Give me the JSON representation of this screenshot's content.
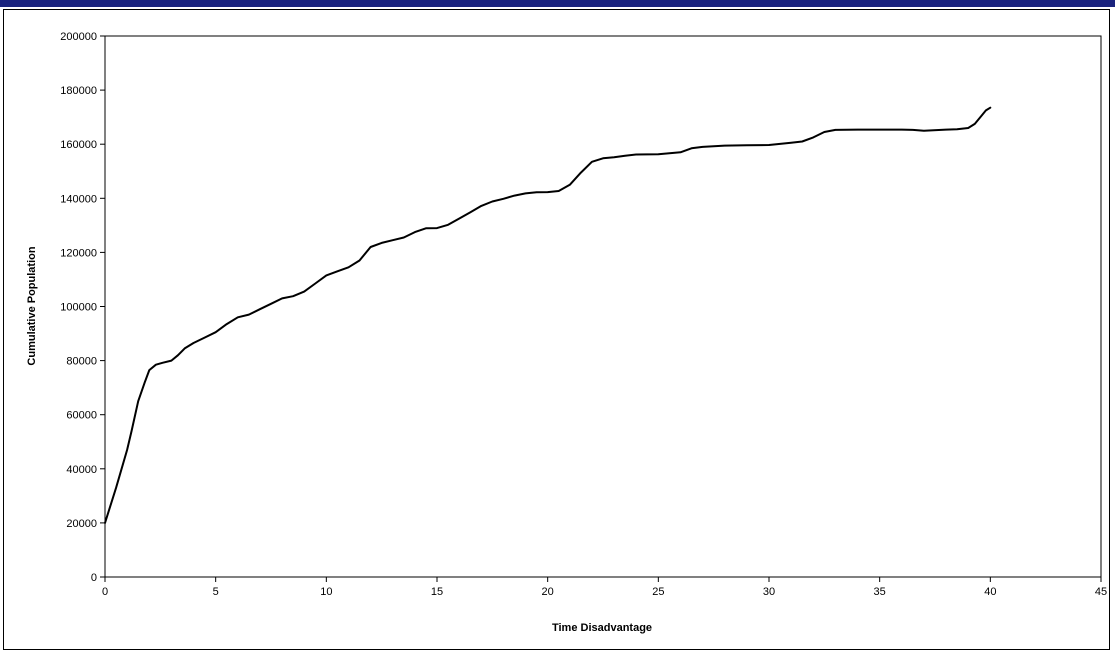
{
  "colors": {
    "top_bar": "#1a237e",
    "series_line": "#000000",
    "plot_border": "#000000"
  },
  "chart_data": {
    "type": "line",
    "xlabel": "Time Disadvantage",
    "ylabel": "Cumulative Population",
    "xlim": [
      0,
      45
    ],
    "ylim": [
      0,
      200000
    ],
    "x_ticks": [
      "0",
      "5",
      "10",
      "15",
      "20",
      "25",
      "30",
      "35",
      "40",
      "45"
    ],
    "y_ticks": [
      "0",
      "20000",
      "40000",
      "60000",
      "80000",
      "100000",
      "120000",
      "140000",
      "160000",
      "180000",
      "200000"
    ],
    "grid": false,
    "legend": "none",
    "series": [
      {
        "x": [
          0,
          0.5,
          1,
          1.2,
          1.5,
          1.8,
          2,
          2.3,
          2.6,
          3,
          3.3,
          3.6,
          4,
          4.5,
          5,
          5.5,
          6,
          6.5,
          7,
          7.5,
          8,
          8.5,
          9,
          9.5,
          10,
          10.5,
          11,
          11.5,
          12,
          12.5,
          13,
          13.5,
          14,
          14.5,
          15,
          15.5,
          16,
          16.5,
          17,
          17.5,
          18,
          18.5,
          19,
          19.5,
          20,
          20.5,
          21,
          21.5,
          22,
          22.5,
          23,
          23.5,
          24,
          25,
          26,
          26.5,
          27,
          28,
          29,
          30,
          31,
          31.5,
          32,
          32.5,
          33,
          34,
          35,
          36,
          36.5,
          37,
          38,
          38.5,
          39,
          39.3,
          39.6,
          39.8,
          40
        ],
        "y": [
          20000,
          33000,
          47000,
          54000,
          65000,
          72000,
          76500,
          78500,
          79200,
          80000,
          82000,
          84500,
          86500,
          88500,
          90500,
          93500,
          96000,
          97000,
          99000,
          101000,
          103000,
          103800,
          105500,
          108500,
          111500,
          113000,
          114500,
          117000,
          122000,
          123500,
          124500,
          125500,
          127500,
          128900,
          129000,
          130200,
          132500,
          134800,
          137200,
          138800,
          139800,
          141000,
          141800,
          142200,
          142300,
          142700,
          145000,
          149500,
          153500,
          154800,
          155200,
          155700,
          156200,
          156300,
          157000,
          158500,
          159000,
          159500,
          159600,
          159700,
          160500,
          161000,
          162500,
          164500,
          165300,
          165400,
          165400,
          165400,
          165300,
          165000,
          165400,
          165500,
          166000,
          167500,
          170500,
          172500,
          173500
        ]
      }
    ]
  }
}
